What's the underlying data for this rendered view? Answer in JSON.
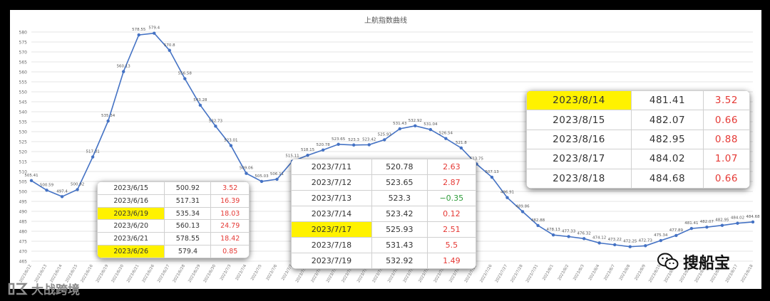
{
  "chart_data": {
    "type": "line",
    "title": "上航指数曲线",
    "xlabel": "",
    "ylabel": "",
    "ylim": [
      465,
      580
    ],
    "yticks": [
      465,
      470,
      475,
      480,
      485,
      490,
      495,
      500,
      505,
      510,
      515,
      520,
      525,
      530,
      535,
      540,
      545,
      550,
      555,
      560,
      565,
      570,
      575,
      580
    ],
    "grid": true,
    "line_color": "#4472c4",
    "x": [
      "2023/6/12",
      "2023/6/13",
      "2023/6/14",
      "2023/6/15",
      "2023/6/16",
      "2023/6/19",
      "2023/6/20",
      "2023/6/21",
      "2023/6/26",
      "2023/6/27",
      "2023/6/28",
      "2023/6/29",
      "2023/6/30",
      "2023/7/3",
      "2023/7/4",
      "2023/7/5",
      "2023/7/6",
      "2023/7/7",
      "2023/7/10",
      "2023/7/11",
      "2023/7/12",
      "2023/7/13",
      "2023/7/14",
      "2023/7/17",
      "2023/7/18",
      "2023/7/19",
      "2023/7/20",
      "2023/7/21",
      "2023/7/24",
      "2023/7/25",
      "2023/7/26",
      "2023/7/27",
      "2023/7/28",
      "2023/7/31",
      "2023/8/1",
      "2023/8/2",
      "2023/8/3",
      "2023/8/4",
      "2023/8/7",
      "2023/8/8",
      "2023/8/9",
      "2023/8/10",
      "2023/8/11",
      "2023/8/14",
      "2023/8/15",
      "2023/8/16",
      "2023/8/17",
      "2023/8/18"
    ],
    "values": [
      505.41,
      500.59,
      497.4,
      500.92,
      517.31,
      535.34,
      560.13,
      578.55,
      579.4,
      570.8,
      556.58,
      543.28,
      532.73,
      523.01,
      509.06,
      505.03,
      506.11,
      515.11,
      518.15,
      520.78,
      523.65,
      523.3,
      523.42,
      525.93,
      531.43,
      532.92,
      531.04,
      526.54,
      521.8,
      513.75,
      507.13,
      496.91,
      489.86,
      482.88,
      478.13,
      477.33,
      476.32,
      474.12,
      473.22,
      472.25,
      472.73,
      475.34,
      477.89,
      481.41,
      482.07,
      482.95,
      484.02,
      484.68
    ],
    "labels": [
      "505.41",
      "500.59",
      "497.4",
      "500.92",
      "517.31",
      "535.34",
      "560.13",
      "578.55",
      "579.4",
      "570.8",
      "556.58",
      "543.28",
      "532.73",
      "523.01",
      "509.06",
      "505.03",
      "506.11",
      "515.11",
      "518.15",
      "520.78",
      "523.65",
      "523.3",
      "523.42",
      "525.93",
      "531.43",
      "532.92",
      "531.04",
      "526.54",
      "521.8",
      "513.75",
      "507.13",
      "496.91",
      "489.86",
      "482.88",
      "478.13",
      "477.33",
      "476.32",
      "474.12",
      "473.22",
      "472.25",
      "472.73",
      "475.34",
      "477.89",
      "481.41",
      "482.07",
      "482.95",
      "484.02",
      "484.68"
    ]
  },
  "tables": [
    {
      "rows": [
        {
          "date": "2023/6/15",
          "value": "500.92",
          "change": "3.52",
          "highlight": false,
          "negative": false
        },
        {
          "date": "2023/6/16",
          "value": "517.31",
          "change": "16.39",
          "highlight": false,
          "negative": false
        },
        {
          "date": "2023/6/19",
          "value": "535.34",
          "change": "18.03",
          "highlight": true,
          "negative": false
        },
        {
          "date": "2023/6/20",
          "value": "560.13",
          "change": "24.79",
          "highlight": false,
          "negative": false
        },
        {
          "date": "2023/6/21",
          "value": "578.55",
          "change": "18.42",
          "highlight": false,
          "negative": false
        },
        {
          "date": "2023/6/26",
          "value": "579.4",
          "change": "0.85",
          "highlight": true,
          "negative": false
        }
      ]
    },
    {
      "rows": [
        {
          "date": "2023/7/11",
          "value": "520.78",
          "change": "2.63",
          "highlight": false,
          "negative": false
        },
        {
          "date": "2023/7/12",
          "value": "523.65",
          "change": "2.87",
          "highlight": false,
          "negative": false
        },
        {
          "date": "2023/7/13",
          "value": "523.3",
          "change": "−0.35",
          "highlight": false,
          "negative": true
        },
        {
          "date": "2023/7/14",
          "value": "523.42",
          "change": "0.12",
          "highlight": false,
          "negative": false
        },
        {
          "date": "2023/7/17",
          "value": "525.93",
          "change": "2.51",
          "highlight": true,
          "negative": false
        },
        {
          "date": "2023/7/18",
          "value": "531.43",
          "change": "5.5",
          "highlight": false,
          "negative": false
        },
        {
          "date": "2023/7/19",
          "value": "532.92",
          "change": "1.49",
          "highlight": false,
          "negative": false
        }
      ]
    },
    {
      "rows": [
        {
          "date": "2023/8/14",
          "value": "481.41",
          "change": "3.52",
          "highlight": true,
          "negative": false
        },
        {
          "date": "2023/8/15",
          "value": "482.07",
          "change": "0.66",
          "highlight": false,
          "negative": false
        },
        {
          "date": "2023/8/16",
          "value": "482.95",
          "change": "0.88",
          "highlight": false,
          "negative": false
        },
        {
          "date": "2023/8/17",
          "value": "484.02",
          "change": "1.07",
          "highlight": false,
          "negative": false
        },
        {
          "date": "2023/8/18",
          "value": "484.68",
          "change": "0.66",
          "highlight": false,
          "negative": false
        }
      ]
    }
  ],
  "watermarks": {
    "right": "搜船宝",
    "left": "大战跨境"
  },
  "colors": {
    "positive": "#e53935",
    "negative": "#2e9c3a",
    "highlight": "#fff200"
  }
}
